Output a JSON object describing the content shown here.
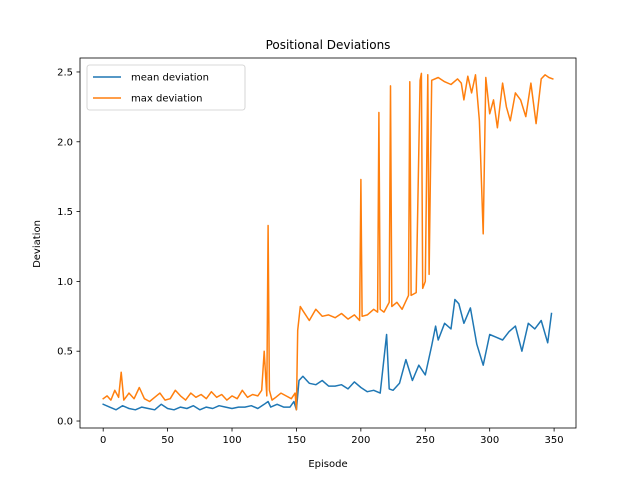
{
  "chart_data": {
    "type": "line",
    "title": "Positional Deviations",
    "xlabel": "Episode",
    "ylabel": "Deviation",
    "xlim": [
      -18,
      367
    ],
    "ylim": [
      -0.05,
      2.6
    ],
    "xticks": [
      0,
      50,
      100,
      150,
      200,
      250,
      300,
      350
    ],
    "yticks": [
      0.0,
      0.5,
      1.0,
      1.5,
      2.0,
      2.5
    ],
    "grid": false,
    "legend": "top-left",
    "series": [
      {
        "name": "mean deviation",
        "color": "#1f77b4",
        "x": [
          0,
          5,
          10,
          15,
          20,
          25,
          30,
          35,
          40,
          45,
          50,
          55,
          60,
          65,
          70,
          75,
          80,
          85,
          90,
          95,
          100,
          105,
          110,
          115,
          120,
          125,
          128,
          130,
          135,
          140,
          145,
          148,
          150,
          152,
          155,
          160,
          165,
          170,
          175,
          180,
          185,
          190,
          195,
          200,
          205,
          210,
          215,
          220,
          222,
          225,
          230,
          235,
          240,
          245,
          250,
          255,
          258,
          260,
          265,
          270,
          273,
          276,
          280,
          285,
          290,
          295,
          300,
          305,
          310,
          315,
          320,
          325,
          330,
          335,
          340,
          345,
          348
        ],
        "values": [
          0.12,
          0.1,
          0.08,
          0.11,
          0.09,
          0.08,
          0.1,
          0.09,
          0.08,
          0.12,
          0.09,
          0.08,
          0.1,
          0.09,
          0.11,
          0.08,
          0.1,
          0.09,
          0.11,
          0.1,
          0.09,
          0.1,
          0.1,
          0.11,
          0.09,
          0.12,
          0.14,
          0.1,
          0.12,
          0.1,
          0.1,
          0.14,
          0.08,
          0.29,
          0.32,
          0.27,
          0.26,
          0.29,
          0.25,
          0.25,
          0.26,
          0.23,
          0.28,
          0.24,
          0.21,
          0.22,
          0.2,
          0.62,
          0.23,
          0.22,
          0.27,
          0.44,
          0.29,
          0.4,
          0.33,
          0.54,
          0.68,
          0.58,
          0.7,
          0.66,
          0.87,
          0.84,
          0.7,
          0.81,
          0.55,
          0.4,
          0.62,
          0.6,
          0.58,
          0.64,
          0.68,
          0.5,
          0.7,
          0.66,
          0.72,
          0.56,
          0.77
        ]
      },
      {
        "name": "max deviation",
        "color": "#ff7f0e",
        "x": [
          0,
          3,
          6,
          9,
          12,
          14,
          16,
          20,
          24,
          28,
          32,
          36,
          40,
          44,
          48,
          52,
          56,
          60,
          64,
          68,
          72,
          76,
          80,
          84,
          88,
          92,
          96,
          100,
          104,
          108,
          112,
          116,
          120,
          123,
          125,
          127,
          128,
          129,
          131,
          134,
          138,
          142,
          146,
          149,
          150,
          151,
          153,
          155,
          160,
          165,
          170,
          175,
          180,
          185,
          190,
          195,
          199,
          200,
          201,
          205,
          210,
          213,
          214,
          215,
          218,
          222,
          223,
          224,
          228,
          232,
          237,
          238,
          239,
          243,
          246,
          247,
          248,
          250,
          252,
          253,
          255,
          260,
          265,
          270,
          275,
          278,
          280,
          283,
          286,
          289,
          292,
          295,
          297,
          300,
          303,
          306,
          310,
          313,
          316,
          320,
          324,
          328,
          332,
          336,
          340,
          343,
          346,
          349
        ],
        "values": [
          0.16,
          0.18,
          0.15,
          0.22,
          0.17,
          0.35,
          0.15,
          0.2,
          0.16,
          0.24,
          0.16,
          0.14,
          0.17,
          0.2,
          0.15,
          0.16,
          0.22,
          0.18,
          0.15,
          0.2,
          0.17,
          0.19,
          0.16,
          0.21,
          0.17,
          0.19,
          0.15,
          0.18,
          0.16,
          0.22,
          0.17,
          0.19,
          0.18,
          0.22,
          0.5,
          0.18,
          1.4,
          0.22,
          0.15,
          0.17,
          0.2,
          0.18,
          0.16,
          0.2,
          0.08,
          0.65,
          0.82,
          0.79,
          0.72,
          0.8,
          0.75,
          0.76,
          0.74,
          0.77,
          0.73,
          0.76,
          0.72,
          1.73,
          0.75,
          0.76,
          0.8,
          0.78,
          2.21,
          0.8,
          0.78,
          0.85,
          2.4,
          0.82,
          0.85,
          0.8,
          0.9,
          2.43,
          0.9,
          0.92,
          2.44,
          2.49,
          0.95,
          1.0,
          2.48,
          1.05,
          2.44,
          2.46,
          2.43,
          2.41,
          2.45,
          2.42,
          2.3,
          2.47,
          2.35,
          2.48,
          2.15,
          1.34,
          2.46,
          2.2,
          2.3,
          2.1,
          2.42,
          2.25,
          2.15,
          2.35,
          2.3,
          2.18,
          2.42,
          2.13,
          2.45,
          2.48,
          2.46,
          2.45
        ]
      }
    ]
  }
}
